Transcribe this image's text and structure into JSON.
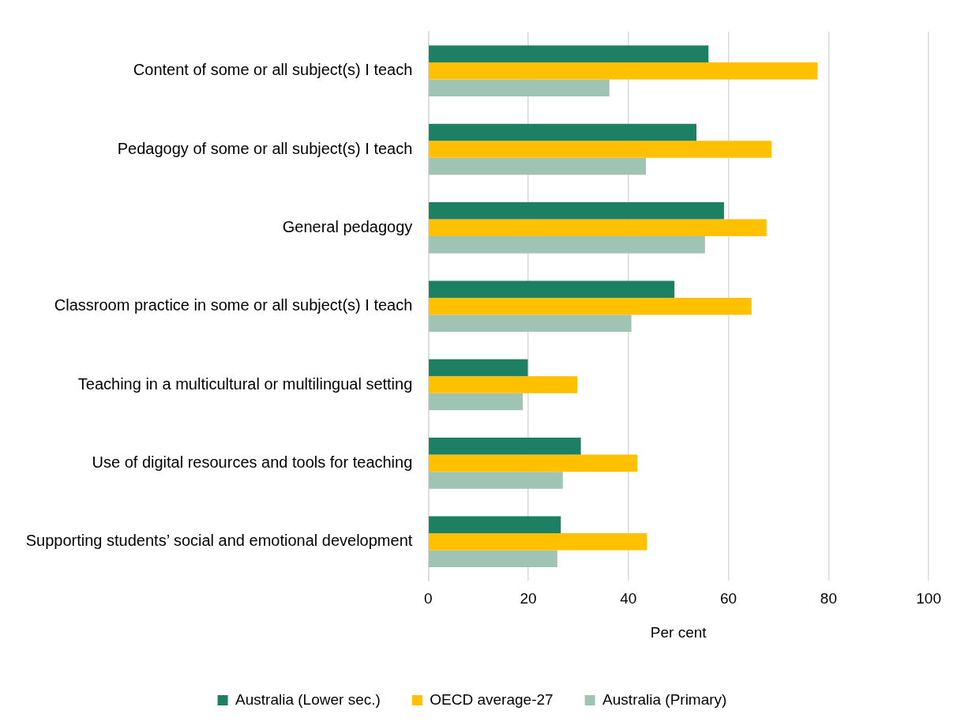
{
  "chart_data": {
    "type": "bar",
    "orientation": "horizontal",
    "xlabel": "Per cent",
    "categories": [
      "Content of some or all subject(s) I teach",
      "Pedagogy of some or all subject(s) I teach",
      "General pedagogy",
      "Classroom practice in some or all subject(s) I teach",
      "Teaching in a multicultural or multilingual setting",
      "Use of digital resources and tools for teaching",
      "Supporting students’ social and emotional development"
    ],
    "series": [
      {
        "name": "Australia (Lower sec.)",
        "color": "#1e8062",
        "values": [
          56,
          53.6,
          59.1,
          49.2,
          19.9,
          30.5,
          26.5
        ]
      },
      {
        "name": "OECD average-27",
        "color": "#ffc000",
        "values": [
          77.8,
          68.6,
          67.6,
          64.6,
          29.8,
          41.8,
          43.7
        ]
      },
      {
        "name": "Australia (Primary)",
        "color": "#a0c4b4",
        "values": [
          36.2,
          43.5,
          55.3,
          40.6,
          18.9,
          26.9,
          25.8
        ]
      }
    ],
    "xlim": [
      0,
      100
    ],
    "xticks": [
      0,
      20,
      40,
      60,
      80,
      100
    ],
    "grid": "x",
    "legend": "bottom"
  }
}
